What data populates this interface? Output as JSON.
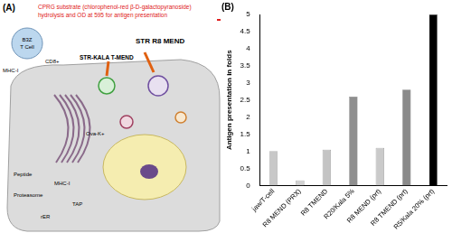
{
  "diagram": {
    "panel_label": "(A)",
    "caption_lines": [
      "CPRG substrate (chlorophenol-red β-D-galactopyranoside)",
      "hydrolysis and OD at 595  for antigen presentation"
    ],
    "labels": [
      {
        "text": "B3Z"
      },
      {
        "text": "T Cell"
      },
      {
        "text": "CD8+"
      },
      {
        "text": "MHC-I"
      },
      {
        "text": "STR R8 MEND"
      },
      {
        "text": "STR-KALA T-MEND"
      },
      {
        "text": "Ova-K+"
      },
      {
        "text": "MHC-I"
      },
      {
        "text": "Peptide"
      },
      {
        "text": "Proteasome"
      },
      {
        "text": "TAP"
      },
      {
        "text": "rER"
      }
    ]
  },
  "chart_data": {
    "type": "bar",
    "title": "(B)",
    "y_label": "Antigen presentation in folds",
    "categories": [
      "jaw/T-cell",
      "R8 MEND (PRX)",
      "R8 TMEND",
      "R20/Kala 5%",
      "R8 MEND (prt)",
      "R8 TMEND (prt)",
      "R5/Kala 20% (prt)"
    ],
    "values": [
      1.0,
      0.15,
      1.05,
      2.6,
      1.1,
      2.8,
      5.0
    ],
    "colors": [
      "#c8c8c8",
      "#d2d2d2",
      "#c4c4c4",
      "#8f8f8f",
      "#cacaca",
      "#8a8a8a",
      "#000000"
    ],
    "ylim": [
      0,
      5
    ],
    "yticks": [
      0,
      0.5,
      1,
      1.5,
      2,
      2.5,
      3,
      3.5,
      4,
      4.5,
      5
    ],
    "grid": false
  }
}
